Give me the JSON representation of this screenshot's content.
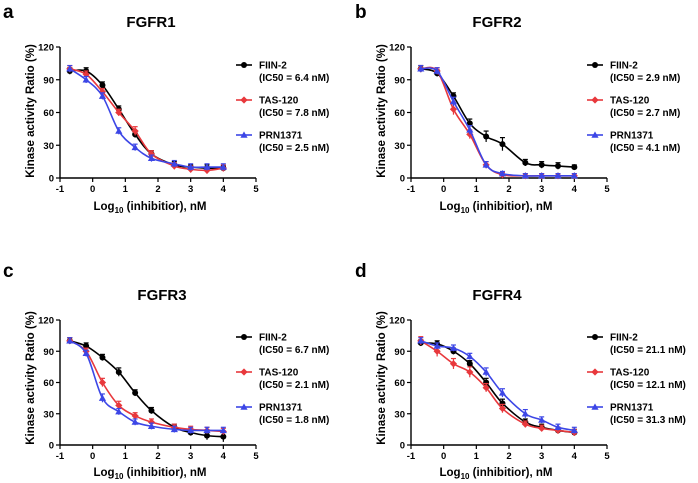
{
  "chart_data": [
    {
      "type": "line",
      "panel": "a",
      "title": "FGFR1",
      "xlabel": "Log10 (inhibitior), nM",
      "ylabel": "Kinase activity Ratio (%)",
      "xlim": [
        -1,
        5
      ],
      "ylim": [
        0,
        120
      ],
      "xticks": [
        -1,
        0,
        1,
        2,
        3,
        4,
        5
      ],
      "yticks": [
        0,
        30,
        60,
        90,
        120
      ],
      "x": [
        -0.7,
        -0.2,
        0.3,
        0.8,
        1.3,
        1.8,
        2.5,
        3.0,
        3.5,
        4.0
      ],
      "series": [
        {
          "name": "FIIN-2",
          "legend": "FIIN-2",
          "ic50": "(IC50 = 6.4 nM)",
          "color": "#000000",
          "marker": "circle",
          "values": [
            98,
            98,
            85,
            63,
            40,
            22,
            12,
            10,
            9,
            9
          ],
          "errors": [
            3,
            3,
            3,
            3,
            3,
            3,
            3,
            2,
            3,
            2
          ]
        },
        {
          "name": "TAS-120",
          "legend": "TAS-120",
          "ic50": "(IC50 = 7.8 nM)",
          "color": "#e8383c",
          "marker": "diamond",
          "values": [
            100,
            95,
            79,
            60,
            43,
            22,
            11,
            8,
            7,
            9
          ],
          "errors": [
            3,
            3,
            3,
            3,
            4,
            3,
            3,
            3,
            3,
            3
          ]
        },
        {
          "name": "PRN1371",
          "legend": "PRN1371",
          "ic50": "(IC50 = 2.5 nM)",
          "color": "#3c46e6",
          "marker": "triangle",
          "values": [
            100,
            90,
            75,
            43,
            28,
            18,
            13,
            10,
            10,
            10
          ],
          "errors": [
            3,
            3,
            3,
            3,
            3,
            3,
            3,
            3,
            3,
            3
          ]
        }
      ]
    },
    {
      "type": "line",
      "panel": "b",
      "title": "FGFR2",
      "xlabel": "Log10 (inhibitior), nM",
      "ylabel": "Kinase activity Ratio (%)",
      "xlim": [
        -1,
        5
      ],
      "ylim": [
        0,
        120
      ],
      "xticks": [
        -1,
        0,
        1,
        2,
        3,
        4,
        5
      ],
      "yticks": [
        0,
        30,
        60,
        90,
        120
      ],
      "x": [
        -0.7,
        -0.2,
        0.3,
        0.8,
        1.3,
        1.8,
        2.5,
        3.0,
        3.5,
        4.0
      ],
      "series": [
        {
          "name": "FIIN-2",
          "legend": "FIIN-2",
          "ic50": "(IC50 = 2.9 nM)",
          "color": "#000000",
          "marker": "circle",
          "values": [
            100,
            96,
            75,
            50,
            38,
            31,
            14,
            12,
            11,
            10
          ],
          "errors": [
            3,
            3,
            3,
            4,
            5,
            6,
            3,
            3,
            3,
            2
          ]
        },
        {
          "name": "TAS-120",
          "legend": "TAS-120",
          "ic50": "(IC50 = 2.7 nM)",
          "color": "#e8383c",
          "marker": "diamond",
          "values": [
            100,
            98,
            63,
            40,
            12,
            3,
            2,
            2,
            2,
            2
          ],
          "errors": [
            3,
            3,
            5,
            4,
            3,
            2,
            2,
            2,
            2,
            2
          ]
        },
        {
          "name": "PRN1371",
          "legend": "PRN1371",
          "ic50": "(IC50 = 4.1 nM)",
          "color": "#3c46e6",
          "marker": "triangle",
          "values": [
            100,
            98,
            70,
            44,
            12,
            4,
            2,
            2,
            2,
            2
          ],
          "errors": [
            3,
            3,
            4,
            4,
            3,
            2,
            2,
            2,
            2,
            2
          ]
        }
      ]
    },
    {
      "type": "line",
      "panel": "c",
      "title": "FGFR3",
      "xlabel": "Log10 (inhibitior), nM",
      "ylabel": "Kinase activity Ratio (%)",
      "xlim": [
        -1,
        5
      ],
      "ylim": [
        0,
        120
      ],
      "xticks": [
        -1,
        0,
        1,
        2,
        3,
        4,
        5
      ],
      "yticks": [
        0,
        30,
        60,
        90,
        120
      ],
      "x": [
        -0.7,
        -0.2,
        0.3,
        0.8,
        1.3,
        1.8,
        2.5,
        3.0,
        3.5,
        4.0
      ],
      "series": [
        {
          "name": "FIIN-2",
          "legend": "FIIN-2",
          "ic50": "(IC50 = 6.7 nM)",
          "color": "#000000",
          "marker": "circle",
          "values": [
            100,
            95,
            84,
            70,
            50,
            33,
            17,
            12,
            9,
            8
          ],
          "errors": [
            3,
            3,
            3,
            4,
            3,
            3,
            3,
            3,
            4,
            5
          ]
        },
        {
          "name": "TAS-120",
          "legend": "TAS-120",
          "ic50": "(IC50 = 2.1 nM)",
          "color": "#e8383c",
          "marker": "diamond",
          "values": [
            100,
            90,
            60,
            38,
            28,
            22,
            17,
            15,
            14,
            13
          ],
          "errors": [
            3,
            3,
            4,
            4,
            3,
            3,
            3,
            3,
            3,
            3
          ]
        },
        {
          "name": "PRN1371",
          "legend": "PRN1371",
          "ic50": "(IC50 = 1.8 nM)",
          "color": "#3c46e6",
          "marker": "triangle",
          "values": [
            100,
            88,
            45,
            32,
            22,
            18,
            15,
            14,
            14,
            14
          ],
          "errors": [
            3,
            3,
            4,
            3,
            3,
            3,
            3,
            3,
            3,
            3
          ]
        }
      ]
    },
    {
      "type": "line",
      "panel": "d",
      "title": "FGFR4",
      "xlabel": "Log10 (inhibitior), nM",
      "ylabel": "Kinase activity Ratio (%)",
      "xlim": [
        -1,
        5
      ],
      "ylim": [
        0,
        120
      ],
      "xticks": [
        -1,
        0,
        1,
        2,
        3,
        4,
        5
      ],
      "yticks": [
        0,
        30,
        60,
        90,
        120
      ],
      "x": [
        -0.7,
        -0.2,
        0.3,
        0.8,
        1.3,
        1.8,
        2.5,
        3.0,
        3.5,
        4.0
      ],
      "series": [
        {
          "name": "FIIN-2",
          "legend": "FIIN-2",
          "ic50": "(IC50 = 21.1 nM)",
          "color": "#000000",
          "marker": "circle",
          "values": [
            98,
            97,
            90,
            78,
            60,
            40,
            22,
            17,
            14,
            12
          ],
          "errors": [
            3,
            3,
            3,
            3,
            4,
            4,
            3,
            3,
            3,
            3
          ]
        },
        {
          "name": "TAS-120",
          "legend": "TAS-120",
          "ic50": "(IC50 = 12.1 nM)",
          "color": "#e8383c",
          "marker": "diamond",
          "values": [
            100,
            90,
            78,
            70,
            55,
            35,
            20,
            16,
            14,
            12
          ],
          "errors": [
            4,
            5,
            5,
            5,
            4,
            4,
            3,
            3,
            3,
            3
          ]
        },
        {
          "name": "PRN1371",
          "legend": "PRN1371",
          "ic50": "(IC50 = 31.3 nM)",
          "color": "#3c46e6",
          "marker": "triangle",
          "values": [
            100,
            95,
            93,
            85,
            70,
            50,
            30,
            24,
            17,
            14
          ],
          "errors": [
            3,
            3,
            3,
            3,
            4,
            4,
            4,
            3,
            3,
            3
          ]
        }
      ]
    }
  ]
}
